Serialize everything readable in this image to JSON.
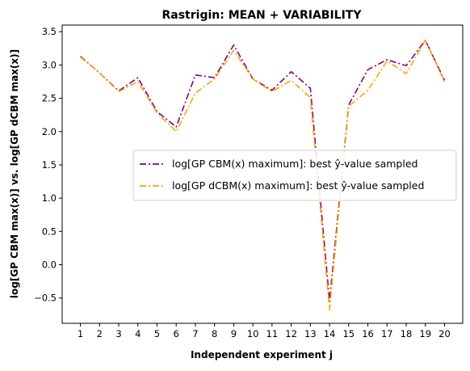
{
  "chart_data": {
    "type": "line",
    "title": "Rastrigin: MEAN + VARIABILITY",
    "xlabel": "Independent experiment j",
    "ylabel": "log[GP CBM max(x)] vs. log[GP dCBM max(x)]",
    "x": [
      1,
      2,
      3,
      4,
      5,
      6,
      7,
      8,
      9,
      10,
      11,
      12,
      13,
      14,
      15,
      16,
      17,
      18,
      19,
      20
    ],
    "xticks": [
      "1",
      "2",
      "3",
      "4",
      "5",
      "6",
      "7",
      "8",
      "9",
      "10",
      "11",
      "12",
      "13",
      "14",
      "15",
      "16",
      "17",
      "18",
      "19",
      "20"
    ],
    "yticks": [
      "−0.5",
      "0.0",
      "0.5",
      "1.0",
      "1.5",
      "2.0",
      "2.5",
      "3.0",
      "3.5"
    ],
    "ylim": [
      -0.88,
      3.6
    ],
    "xlim": [
      0.05,
      20.95
    ],
    "grid": false,
    "legend_position": "center-right",
    "series": [
      {
        "name": "log[GP CBM(x) maximum]: best ŷ-value sampled",
        "color": "#800080",
        "linestyle": "dashdot",
        "values": [
          3.13,
          2.88,
          2.61,
          2.81,
          2.3,
          2.07,
          2.85,
          2.81,
          3.3,
          2.79,
          2.62,
          2.9,
          2.65,
          -0.55,
          2.4,
          2.93,
          3.08,
          2.99,
          3.37,
          2.77
        ]
      },
      {
        "name": "log[GP dCBM(x) maximum]: best ŷ-value sampled",
        "color": "#FFA500",
        "linestyle": "dashdot",
        "values": [
          3.12,
          2.88,
          2.6,
          2.75,
          2.28,
          2.0,
          2.58,
          2.79,
          3.22,
          2.79,
          2.6,
          2.77,
          2.51,
          -0.68,
          2.38,
          2.62,
          3.06,
          2.87,
          3.37,
          2.75
        ]
      }
    ]
  }
}
